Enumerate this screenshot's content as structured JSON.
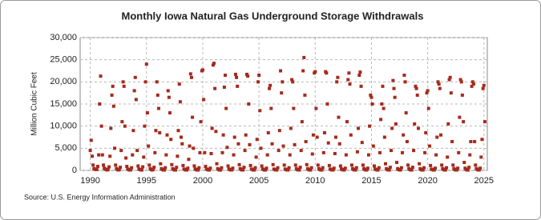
{
  "chart_data": {
    "type": "scatter",
    "title": "Monthly Iowa Natural  Gas Underground Storage Withdrawals",
    "y_label": "Million Cubic Feet",
    "source": "Source: U.S. Energy Information Administration",
    "color": "#a52a1c",
    "grid": true,
    "xlim": [
      1989.1,
      2025.3
    ],
    "xticks": [
      1990,
      1995,
      2000,
      2005,
      2010,
      2015,
      2020,
      2025
    ],
    "ylim": [
      0,
      30000
    ],
    "yticks": [
      0,
      {
        "value": 5000,
        "label": "5,000"
      },
      {
        "value": 10000,
        "label": "10,000"
      },
      {
        "value": 15000,
        "label": "15,000"
      },
      {
        "value": 20000,
        "label": "20,000"
      },
      {
        "value": 25000,
        "label": "25,000"
      },
      {
        "value": 30000,
        "label": "30,000"
      }
    ],
    "x": [
      1990,
      1990.08,
      1990.17,
      1990.25,
      1990.33,
      1990.42,
      1990.5,
      1990.58,
      1990.67,
      1990.75,
      1990.83,
      1990.92,
      1991,
      1991.08,
      1991.17,
      1991.25,
      1991.33,
      1991.42,
      1991.5,
      1991.58,
      1991.67,
      1991.75,
      1991.83,
      1991.92,
      1992,
      1992.08,
      1992.17,
      1992.25,
      1992.33,
      1992.42,
      1992.5,
      1992.58,
      1992.67,
      1992.75,
      1992.83,
      1992.92,
      1993,
      1993.08,
      1993.17,
      1993.25,
      1993.33,
      1993.42,
      1993.5,
      1993.58,
      1993.67,
      1993.75,
      1993.83,
      1993.92,
      1994,
      1994.08,
      1994.17,
      1994.25,
      1994.33,
      1994.42,
      1994.5,
      1994.58,
      1994.67,
      1994.75,
      1994.83,
      1994.92,
      1995,
      1995.08,
      1995.17,
      1995.25,
      1995.33,
      1995.42,
      1995.5,
      1995.58,
      1995.67,
      1995.75,
      1995.83,
      1995.92,
      1996,
      1996.08,
      1996.17,
      1996.25,
      1996.33,
      1996.42,
      1996.5,
      1996.58,
      1996.67,
      1996.75,
      1996.83,
      1996.92,
      1997,
      1997.08,
      1997.17,
      1997.25,
      1997.33,
      1997.42,
      1997.5,
      1997.58,
      1997.67,
      1997.75,
      1997.83,
      1997.92,
      1998,
      1998.08,
      1998.17,
      1998.25,
      1998.33,
      1998.42,
      1998.5,
      1998.58,
      1998.67,
      1998.75,
      1998.83,
      1998.92,
      1999,
      1999.08,
      1999.17,
      1999.25,
      1999.33,
      1999.42,
      1999.5,
      1999.58,
      1999.67,
      1999.75,
      1999.83,
      1999.92,
      2000,
      2000.08,
      2000.17,
      2000.25,
      2000.33,
      2000.42,
      2000.5,
      2000.58,
      2000.67,
      2000.75,
      2000.83,
      2000.92,
      2001,
      2001.08,
      2001.17,
      2001.25,
      2001.33,
      2001.42,
      2001.5,
      2001.58,
      2001.67,
      2001.75,
      2001.83,
      2001.92,
      2002,
      2002.08,
      2002.17,
      2002.25,
      2002.33,
      2002.42,
      2002.5,
      2002.58,
      2002.67,
      2002.75,
      2002.83,
      2002.92,
      2003,
      2003.08,
      2003.17,
      2003.25,
      2003.33,
      2003.42,
      2003.5,
      2003.58,
      2003.67,
      2003.75,
      2003.83,
      2003.92,
      2004,
      2004.08,
      2004.17,
      2004.25,
      2004.33,
      2004.42,
      2004.5,
      2004.58,
      2004.67,
      2004.75,
      2004.83,
      2004.92,
      2005,
      2005.08,
      2005.17,
      2005.25,
      2005.33,
      2005.42,
      2005.5,
      2005.58,
      2005.67,
      2005.75,
      2005.83,
      2005.92,
      2006,
      2006.08,
      2006.17,
      2006.25,
      2006.33,
      2006.42,
      2006.5,
      2006.58,
      2006.67,
      2006.75,
      2006.83,
      2006.92,
      2007,
      2007.08,
      2007.17,
      2007.25,
      2007.33,
      2007.42,
      2007.5,
      2007.58,
      2007.67,
      2007.75,
      2007.83,
      2007.92,
      2008,
      2008.08,
      2008.17,
      2008.25,
      2008.33,
      2008.42,
      2008.5,
      2008.58,
      2008.67,
      2008.75,
      2008.83,
      2008.92,
      2009,
      2009.08,
      2009.17,
      2009.25,
      2009.33,
      2009.42,
      2009.5,
      2009.58,
      2009.67,
      2009.75,
      2009.83,
      2009.92,
      2010,
      2010.08,
      2010.17,
      2010.25,
      2010.33,
      2010.42,
      2010.5,
      2010.58,
      2010.67,
      2010.75,
      2010.83,
      2010.92,
      2011,
      2011.08,
      2011.17,
      2011.25,
      2011.33,
      2011.42,
      2011.5,
      2011.58,
      2011.67,
      2011.75,
      2011.83,
      2011.92,
      2012,
      2012.08,
      2012.17,
      2012.25,
      2012.33,
      2012.42,
      2012.5,
      2012.58,
      2012.67,
      2012.75,
      2012.83,
      2012.92,
      2013,
      2013.08,
      2013.17,
      2013.25,
      2013.33,
      2013.42,
      2013.5,
      2013.58,
      2013.67,
      2013.75,
      2013.83,
      2013.92,
      2014,
      2014.08,
      2014.17,
      2014.25,
      2014.33,
      2014.42,
      2014.5,
      2014.58,
      2014.67,
      2014.75,
      2014.83,
      2014.92,
      2015,
      2015.08,
      2015.17,
      2015.25,
      2015.33,
      2015.42,
      2015.5,
      2015.58,
      2015.67,
      2015.75,
      2015.83,
      2015.92,
      2016,
      2016.08,
      2016.17,
      2016.25,
      2016.33,
      2016.42,
      2016.5,
      2016.58,
      2016.67,
      2016.75,
      2016.83,
      2016.92,
      2017,
      2017.08,
      2017.17,
      2017.25,
      2017.33,
      2017.42,
      2017.5,
      2017.58,
      2017.67,
      2017.75,
      2017.83,
      2017.92,
      2018,
      2018.08,
      2018.17,
      2018.25,
      2018.33,
      2018.42,
      2018.5,
      2018.58,
      2018.67,
      2018.75,
      2018.83,
      2018.92,
      2019,
      2019.08,
      2019.17,
      2019.25,
      2019.33,
      2019.42,
      2019.5,
      2019.58,
      2019.67,
      2019.75,
      2019.83,
      2019.92,
      2020,
      2020.08,
      2020.17,
      2020.25,
      2020.33,
      2020.42,
      2020.5,
      2020.58,
      2020.67,
      2020.75,
      2020.83,
      2020.92,
      2021,
      2021.08,
      2021.17,
      2021.25,
      2021.33,
      2021.42,
      2021.5,
      2021.58,
      2021.67,
      2021.75,
      2021.83,
      2021.92,
      2022,
      2022.08,
      2022.17,
      2022.25,
      2022.33,
      2022.42,
      2022.5,
      2022.58,
      2022.67,
      2022.75,
      2022.83,
      2022.92,
      2023,
      2023.08,
      2023.17,
      2023.25,
      2023.33,
      2023.42,
      2023.5,
      2023.58,
      2023.67,
      2023.75,
      2023.83,
      2023.92,
      2024,
      2024.08,
      2024.17,
      2024.25,
      2024.33,
      2024.42,
      2024.5,
      2024.58,
      2024.67,
      2024.75,
      2024.83,
      2024.92,
      2025,
      2025.08
    ],
    "values": [
      4500,
      6800,
      3200,
      1200,
      400,
      300,
      200,
      200,
      900,
      3500,
      15000,
      21300,
      10000,
      3500,
      1200,
      500,
      300,
      200,
      100,
      200,
      800,
      3200,
      9500,
      17000,
      19000,
      14500,
      5000,
      1200,
      400,
      200,
      100,
      200,
      700,
      4500,
      11000,
      20000,
      19000,
      10000,
      2800,
      900,
      300,
      200,
      100,
      100,
      600,
      3500,
      9000,
      18000,
      21000,
      16000,
      4500,
      1000,
      300,
      200,
      100,
      100,
      800,
      3000,
      10000,
      20000,
      24000,
      13000,
      5500,
      1200,
      400,
      200,
      100,
      200,
      700,
      4000,
      9000,
      20000,
      17000,
      14000,
      8500,
      1500,
      400,
      200,
      100,
      100,
      600,
      3500,
      8000,
      18000,
      16500,
      13000,
      7000,
      1300,
      400,
      200,
      100,
      100,
      700,
      3200,
      9000,
      19500,
      15500,
      7500,
      6000,
      1100,
      300,
      200,
      100,
      100,
      500,
      2500,
      5500,
      21800,
      21000,
      12000,
      5000,
      1000,
      300,
      200,
      100,
      100,
      600,
      4000,
      11000,
      22500,
      22700,
      16000,
      4000,
      900,
      300,
      200,
      100,
      100,
      500,
      3800,
      9500,
      23800,
      24200,
      18500,
      8800,
      1500,
      400,
      200,
      100,
      100,
      600,
      4000,
      8000,
      18800,
      21500,
      14000,
      5200,
      1000,
      300,
      200,
      100,
      100,
      500,
      3500,
      7500,
      21700,
      21000,
      19000,
      6000,
      1300,
      400,
      200,
      100,
      100,
      700,
      4500,
      8000,
      21700,
      21300,
      15000,
      5800,
      1100,
      300,
      200,
      100,
      100,
      600,
      3000,
      7000,
      20000,
      21500,
      13500,
      5000,
      1000,
      300,
      200,
      100,
      100,
      500,
      3500,
      8500,
      18500,
      19200,
      14000,
      6000,
      1300,
      300,
      200,
      100,
      100,
      600,
      4500,
      9000,
      22500,
      17500,
      20000,
      5500,
      1200,
      300,
      200,
      100,
      100,
      600,
      3500,
      9500,
      20500,
      20000,
      14000,
      5800,
      1200,
      400,
      200,
      100,
      100,
      700,
      4500,
      11000,
      22500,
      25500,
      17000,
      6500,
      1300,
      400,
      200,
      100,
      100,
      600,
      3700,
      8000,
      22000,
      22300,
      14000,
      7500,
      1200,
      400,
      200,
      100,
      100,
      600,
      4000,
      8500,
      22300,
      22000,
      15000,
      6200,
      1100,
      300,
      200,
      100,
      100,
      500,
      3800,
      7500,
      20000,
      21000,
      12000,
      6000,
      1000,
      300,
      200,
      100,
      100,
      500,
      3500,
      11000,
      20500,
      22000,
      19500,
      8000,
      1200,
      400,
      200,
      100,
      100,
      600,
      4200,
      9500,
      21500,
      22200,
      19000,
      6300,
      1200,
      400,
      200,
      100,
      100,
      500,
      3500,
      10000,
      17000,
      16500,
      15000,
      5500,
      1000,
      300,
      200,
      100,
      100,
      600,
      4000,
      11500,
      15000,
      19000,
      14000,
      7500,
      1500,
      400,
      200,
      100,
      100,
      700,
      4500,
      9500,
      20300,
      18500,
      16500,
      10500,
      1800,
      400,
      200,
      100,
      100,
      600,
      4000,
      8000,
      21500,
      20000,
      13000,
      6500,
      1200,
      400,
      200,
      100,
      100,
      700,
      4500,
      10500,
      19000,
      18500,
      17000,
      9500,
      1500,
      400,
      200,
      100,
      100,
      600,
      4000,
      8500,
      17500,
      18000,
      14000,
      5500,
      1100,
      300,
      200,
      100,
      100,
      500,
      3500,
      7500,
      20000,
      19500,
      18500,
      8000,
      1200,
      400,
      200,
      100,
      100,
      600,
      3000,
      10500,
      20500,
      21000,
      17500,
      6500,
      1200,
      400,
      200,
      100,
      100,
      500,
      4000,
      12000,
      20500,
      20000,
      17000,
      11000,
      1800,
      500,
      200,
      100,
      100,
      700,
      3500,
      6500,
      19000,
      20000,
      19500,
      6500,
      1200,
      400,
      200,
      100,
      100,
      500,
      3000,
      7000,
      18500,
      19200,
      11000
    ]
  }
}
